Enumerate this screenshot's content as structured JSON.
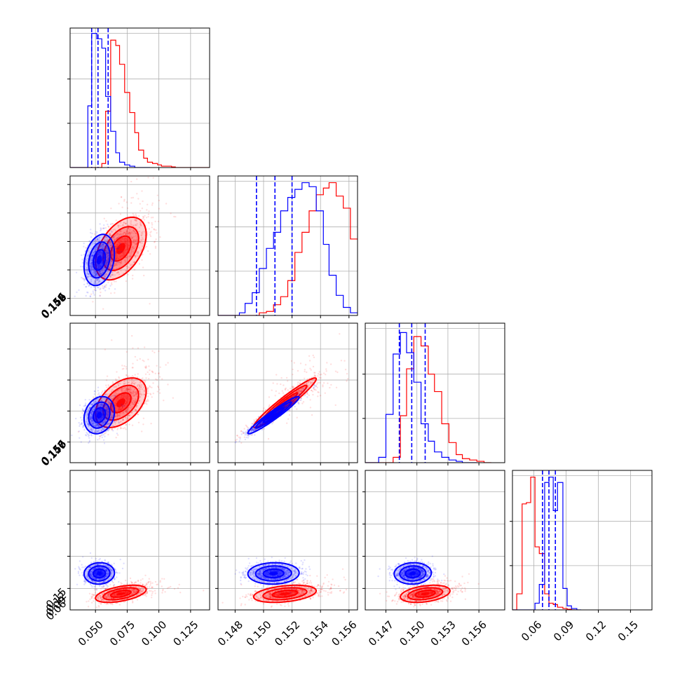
{
  "chart_data": {
    "type": "scatter",
    "figure_kind": "corner-plot",
    "grid": true,
    "series": [
      {
        "color": "#0000ff",
        "quantiles_1d": [
          [
            0.047,
            0.052,
            0.06
          ],
          [
            0.1495,
            0.1508,
            0.152
          ],
          [
            0.1483,
            0.1495,
            0.1508
          ],
          [
            0.068,
            0.074,
            0.08
          ]
        ],
        "center": [
          0.053,
          0.1507,
          0.1496,
          0.074
        ],
        "sigma": [
          0.006,
          0.0009,
          0.0009,
          0.005
        ]
      },
      {
        "color": "#ff0000",
        "center": [
          0.07,
          0.1515,
          0.1508,
          0.055
        ],
        "sigma": [
          0.01,
          0.0011,
          0.0012,
          0.004
        ]
      }
    ],
    "panels_1d": [
      {
        "var": 0,
        "xlim": [
          0.03,
          0.14
        ],
        "ylim": [
          0,
          1.04
        ],
        "ticks": [
          0.05,
          0.075,
          0.1,
          0.125
        ],
        "hist_blue": [
          [
            0.03,
            0.0
          ],
          [
            0.035,
            0.0
          ],
          [
            0.04,
            0.0
          ],
          [
            0.044,
            0.46
          ],
          [
            0.047,
            1.0
          ],
          [
            0.051,
            0.96
          ],
          [
            0.055,
            0.89
          ],
          [
            0.058,
            0.53
          ],
          [
            0.062,
            0.27
          ],
          [
            0.066,
            0.11
          ],
          [
            0.069,
            0.04
          ],
          [
            0.073,
            0.02
          ],
          [
            0.077,
            0.01
          ],
          [
            0.081,
            0.0
          ],
          [
            0.084,
            0.0
          ],
          [
            0.088,
            0.0
          ]
        ],
        "hist_red": [
          [
            0.03,
            0.0
          ],
          [
            0.035,
            0.0
          ],
          [
            0.04,
            0.0
          ],
          [
            0.044,
            0.0
          ],
          [
            0.047,
            0.0
          ],
          [
            0.051,
            0.0
          ],
          [
            0.055,
            0.03
          ],
          [
            0.058,
            0.42
          ],
          [
            0.062,
            0.95
          ],
          [
            0.066,
            0.91
          ],
          [
            0.069,
            0.77
          ],
          [
            0.073,
            0.56
          ],
          [
            0.077,
            0.41
          ],
          [
            0.081,
            0.26
          ],
          [
            0.084,
            0.13
          ],
          [
            0.088,
            0.07
          ],
          [
            0.091,
            0.04
          ],
          [
            0.095,
            0.03
          ],
          [
            0.099,
            0.02
          ],
          [
            0.102,
            0.01
          ],
          [
            0.106,
            0.01
          ],
          [
            0.11,
            0.005
          ],
          [
            0.113,
            0.0
          ],
          [
            0.117,
            0.0
          ],
          [
            0.121,
            0.0
          ],
          [
            0.124,
            0.0
          ],
          [
            0.128,
            0.0
          ],
          [
            0.132,
            0.0
          ],
          [
            0.135,
            0.0
          ],
          [
            0.139,
            0.0
          ]
        ]
      },
      {
        "var": 1,
        "xlim": [
          0.1468,
          0.1566
        ],
        "ylim": [
          0,
          1.04
        ],
        "ticks": [
          0.148,
          0.15,
          0.152,
          0.154,
          0.156
        ],
        "hist_blue": [
          [
            0.1468,
            0.0
          ],
          [
            0.1473,
            0.0
          ],
          [
            0.1478,
            0.0
          ],
          [
            0.1483,
            0.02
          ],
          [
            0.1487,
            0.09
          ],
          [
            0.1492,
            0.17
          ],
          [
            0.1497,
            0.35
          ],
          [
            0.1502,
            0.5
          ],
          [
            0.1507,
            0.62
          ],
          [
            0.1512,
            0.78
          ],
          [
            0.1517,
            0.88
          ],
          [
            0.1522,
            0.94
          ],
          [
            0.1527,
            0.99
          ],
          [
            0.1532,
            0.96
          ],
          [
            0.1537,
            0.78
          ],
          [
            0.1542,
            0.53
          ],
          [
            0.1546,
            0.3
          ],
          [
            0.1551,
            0.15
          ],
          [
            0.1556,
            0.06
          ],
          [
            0.1561,
            0.02
          ]
        ],
        "hist_red": [
          [
            0.1468,
            0.0
          ],
          [
            0.1473,
            0.0
          ],
          [
            0.1478,
            0.0
          ],
          [
            0.1483,
            0.0
          ],
          [
            0.1487,
            0.0
          ],
          [
            0.1492,
            0.0
          ],
          [
            0.1497,
            0.02
          ],
          [
            0.1502,
            0.03
          ],
          [
            0.1507,
            0.08
          ],
          [
            0.1512,
            0.14
          ],
          [
            0.1517,
            0.26
          ],
          [
            0.1522,
            0.47
          ],
          [
            0.1527,
            0.62
          ],
          [
            0.1532,
            0.78
          ],
          [
            0.1537,
            0.9
          ],
          [
            0.1542,
            0.95
          ],
          [
            0.1546,
            0.99
          ],
          [
            0.1551,
            0.89
          ],
          [
            0.1556,
            0.8
          ],
          [
            0.1561,
            0.57
          ]
        ]
      },
      {
        "var": 2,
        "xlim": [
          0.145,
          0.1585
        ],
        "ylim": [
          0,
          1.04
        ],
        "ticks": [
          0.147,
          0.15,
          0.153,
          0.156
        ],
        "hist_blue": [
          [
            0.145,
            0.0
          ],
          [
            0.1457,
            0.0
          ],
          [
            0.1463,
            0.04
          ],
          [
            0.147,
            0.36
          ],
          [
            0.1477,
            0.81
          ],
          [
            0.1484,
            0.97
          ],
          [
            0.149,
            0.82
          ],
          [
            0.1497,
            0.6
          ],
          [
            0.1504,
            0.29
          ],
          [
            0.1511,
            0.16
          ],
          [
            0.1517,
            0.08
          ],
          [
            0.1524,
            0.04
          ],
          [
            0.1531,
            0.02
          ],
          [
            0.1538,
            0.01
          ],
          [
            0.1544,
            0.0
          ],
          [
            0.1551,
            0.0
          ]
        ],
        "hist_red": [
          [
            0.145,
            0.0
          ],
          [
            0.1457,
            0.0
          ],
          [
            0.1463,
            0.0
          ],
          [
            0.147,
            0.0
          ],
          [
            0.1477,
            0.04
          ],
          [
            0.1484,
            0.35
          ],
          [
            0.149,
            0.7
          ],
          [
            0.1497,
            0.94
          ],
          [
            0.1504,
            0.87
          ],
          [
            0.1511,
            0.66
          ],
          [
            0.1517,
            0.53
          ],
          [
            0.1524,
            0.29
          ],
          [
            0.1531,
            0.15
          ],
          [
            0.1538,
            0.06
          ],
          [
            0.1544,
            0.03
          ],
          [
            0.1551,
            0.02
          ],
          [
            0.1558,
            0.01
          ],
          [
            0.1565,
            0.0
          ]
        ]
      },
      {
        "var": 3,
        "xlim": [
          0.04,
          0.17
        ],
        "ylim": [
          0,
          1.04
        ],
        "ticks": [
          0.06,
          0.09,
          0.12,
          0.15
        ],
        "hist_blue": [
          [
            0.04,
            0.0
          ],
          [
            0.044,
            0.0
          ],
          [
            0.049,
            0.0
          ],
          [
            0.053,
            0.0
          ],
          [
            0.057,
            0.0
          ],
          [
            0.061,
            0.05
          ],
          [
            0.065,
            0.19
          ],
          [
            0.07,
            0.95
          ],
          [
            0.074,
            0.99
          ],
          [
            0.078,
            0.74
          ],
          [
            0.082,
            0.95
          ],
          [
            0.087,
            0.16
          ],
          [
            0.091,
            0.03
          ],
          [
            0.095,
            0.01
          ],
          [
            0.1,
            0.0
          ]
        ],
        "hist_red": [
          [
            0.04,
            0.0
          ],
          [
            0.044,
            0.12
          ],
          [
            0.049,
            0.79
          ],
          [
            0.053,
            0.8
          ],
          [
            0.057,
            0.99
          ],
          [
            0.061,
            0.47
          ],
          [
            0.065,
            0.42
          ],
          [
            0.07,
            0.12
          ],
          [
            0.074,
            0.05
          ],
          [
            0.078,
            0.04
          ],
          [
            0.082,
            0.02
          ],
          [
            0.087,
            0.01
          ],
          [
            0.091,
            0.005
          ],
          [
            0.095,
            0.0
          ]
        ]
      }
    ],
    "panels_2d": [
      {
        "row": 1,
        "col": 0,
        "xlim": [
          0.03,
          0.14
        ],
        "ylim": [
          0.1468,
          0.1566
        ],
        "rho_blue": 0.25,
        "rho_red": 0.45
      },
      {
        "row": 2,
        "col": 0,
        "xlim": [
          0.03,
          0.14
        ],
        "ylim": [
          0.145,
          0.1585
        ],
        "rho_blue": 0.2,
        "rho_red": 0.45
      },
      {
        "row": 2,
        "col": 1,
        "xlim": [
          0.1468,
          0.1566
        ],
        "ylim": [
          0.145,
          0.1585
        ],
        "rho_blue": 0.96,
        "rho_red": 0.96
      },
      {
        "row": 3,
        "col": 0,
        "xlim": [
          0.03,
          0.14
        ],
        "ylim": [
          0.04,
          0.17
        ],
        "rho_blue": 0.05,
        "rho_red": 0.5
      },
      {
        "row": 3,
        "col": 1,
        "xlim": [
          0.1468,
          0.1566
        ],
        "ylim": [
          0.04,
          0.17
        ],
        "rho_blue": 0.05,
        "rho_red": 0.35
      },
      {
        "row": 3,
        "col": 2,
        "xlim": [
          0.145,
          0.1585
        ],
        "ylim": [
          0.04,
          0.17
        ],
        "rho_blue": 0.05,
        "rho_red": 0.35
      }
    ],
    "x_tick_labels": [
      [
        "0.050",
        "0.075",
        "0.100",
        "0.125"
      ],
      [
        "0.148",
        "0.150",
        "0.152",
        "0.154",
        "0.156"
      ],
      [
        "0.147",
        "0.150",
        "0.153",
        "0.156"
      ],
      [
        "0.06",
        "0.09",
        "0.12",
        "0.15"
      ]
    ],
    "y_tick_labels": [
      [],
      [
        "0.148",
        "0.150",
        "0.152",
        "0.154",
        "0.156"
      ],
      [
        "0.147",
        "0.150",
        "0.153",
        "0.156"
      ],
      [
        "0.06",
        "0.09",
        "0.12",
        "0.15"
      ]
    ]
  }
}
